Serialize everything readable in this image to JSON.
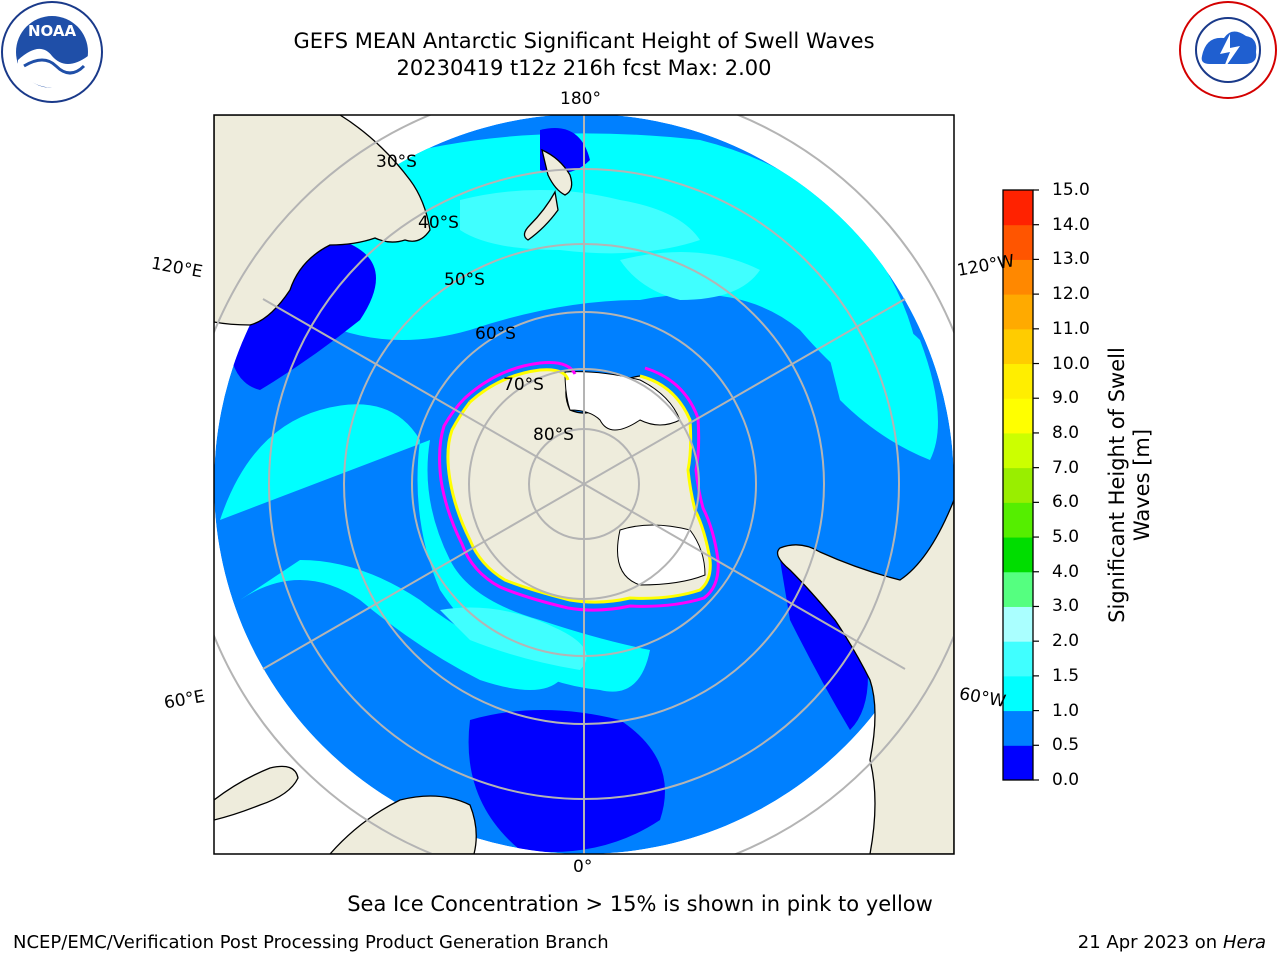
{
  "header": {
    "title_line1": "GEFS MEAN Antarctic Significant Height of Swell Waves",
    "title_line2": "20230419 t12z 216h fcst   Max: 2.00"
  },
  "map": {
    "projection": "south-polar-stereographic",
    "longitude_labels": {
      "top": "180°",
      "bottom": "0°",
      "left_upper": "120°E",
      "left_lower": "60°E",
      "right_upper": "120°W",
      "right_lower": "60°W"
    },
    "latitude_labels": [
      "30°S",
      "40°S",
      "50°S",
      "60°S",
      "70°S",
      "80°S"
    ],
    "colors": {
      "land": "#eeecdc",
      "ice_shelf": "#ffffff",
      "sea_ice_edge": [
        "#ff00ff",
        "#ffff00"
      ],
      "gridline": "#b4b4b4"
    }
  },
  "colorbar": {
    "label": "Significant Height of Swell Waves [m]",
    "ticks": [
      "0.0",
      "0.5",
      "1.0",
      "1.5",
      "2.0",
      "3.0",
      "4.0",
      "5.0",
      "6.0",
      "7.0",
      "8.0",
      "9.0",
      "10.0",
      "11.0",
      "12.0",
      "13.0",
      "14.0",
      "15.0"
    ],
    "colors": [
      "#0000ff",
      "#0080ff",
      "#00ffff",
      "#40ffff",
      "#aaffff",
      "#55ff80",
      "#00dd00",
      "#55ee00",
      "#99ee00",
      "#ccff00",
      "#ffff00",
      "#ffee00",
      "#ffcc00",
      "#ffaa00",
      "#ff8800",
      "#ff5500",
      "#ff2200"
    ]
  },
  "notes": {
    "sea_ice": "Sea Ice Concentration > 15% is shown in pink to yellow"
  },
  "footer": {
    "left": "NCEP/EMC/Verification Post Processing Product Generation Branch",
    "date": "21 Apr 2023 on",
    "machine": "Hera"
  },
  "logos": {
    "left_icon": "noaa-logo",
    "right_icon": "nws-logo"
  }
}
